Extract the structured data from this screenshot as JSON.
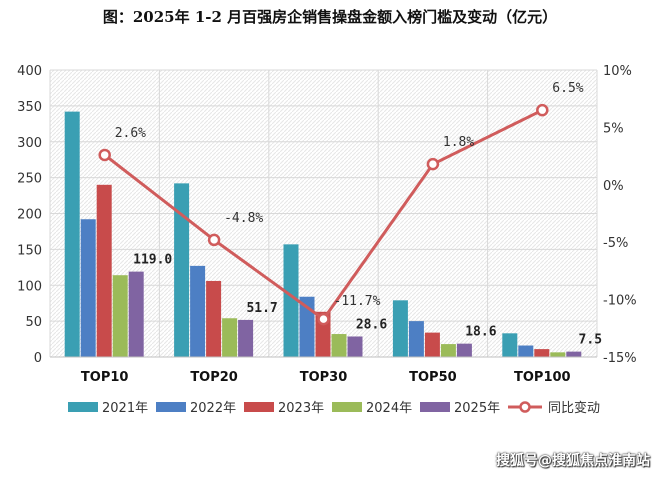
{
  "title": "图：2025年 1-2 月百强房企销售操盘金额入榜门槛及变动（亿元）",
  "watermark": "搜狐号@搜狐焦点淮南站",
  "colors": {
    "bar_2021": "#3a9fb3",
    "bar_2022": "#4d7fc4",
    "bar_2023": "#c84b4b",
    "bar_2024": "#9bbb59",
    "bar_2025": "#8064a2",
    "line": "#d05c5c",
    "grid": "#d9d9d9"
  },
  "chart_data": {
    "type": "bar",
    "categories": [
      "TOP10",
      "TOP20",
      "TOP30",
      "TOP50",
      "TOP100"
    ],
    "series": [
      {
        "name": "2021年",
        "values": [
          342,
          242,
          157,
          79,
          33
        ]
      },
      {
        "name": "2022年",
        "values": [
          192,
          127,
          84,
          50,
          16
        ]
      },
      {
        "name": "2023年",
        "values": [
          240,
          106,
          63,
          34,
          11
        ]
      },
      {
        "name": "2024年",
        "values": [
          114,
          54,
          32,
          18,
          6.5
        ]
      },
      {
        "name": "2025年",
        "values": [
          119.0,
          51.7,
          28.6,
          18.6,
          7.5
        ]
      }
    ],
    "bar_labels_series": "2025年",
    "bar_labels": [
      "119.0",
      "51.7",
      "28.6",
      "18.6",
      "7.5"
    ],
    "line_series": {
      "name": "同比变动",
      "values": [
        2.6,
        -4.8,
        -11.7,
        1.8,
        6.5
      ],
      "labels": [
        "2.6%",
        "-4.8%",
        "-11.7%",
        "1.8%",
        "6.5%"
      ],
      "axis": "secondary"
    },
    "ylim": [
      0,
      400
    ],
    "yticks": [
      "0",
      "50",
      "100",
      "150",
      "200",
      "250",
      "300",
      "350",
      "400"
    ],
    "y2lim": [
      -15,
      10
    ],
    "y2ticks": [
      "-15%",
      "-10%",
      "-5%",
      "0%",
      "5%",
      "10%"
    ],
    "grid": true,
    "legend_position": "bottom"
  }
}
